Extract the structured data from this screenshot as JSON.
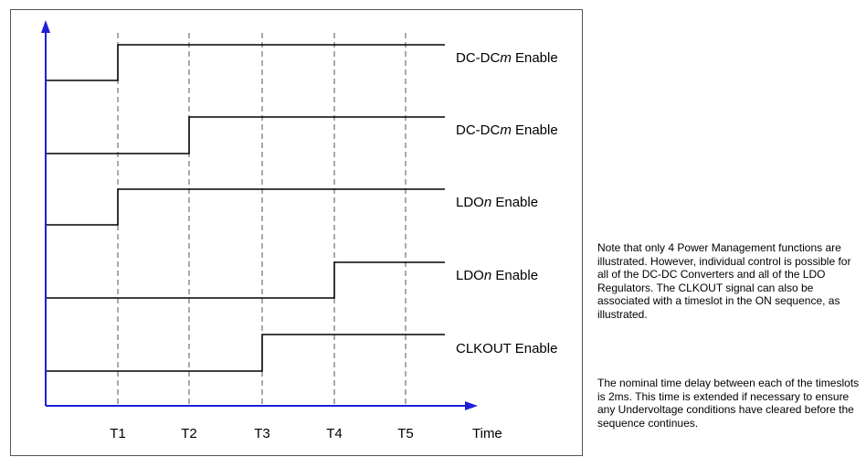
{
  "signals": [
    {
      "prefix": "DC-DC",
      "var": "m",
      "suffix": " Enable",
      "rise": "T1"
    },
    {
      "prefix": "DC-DC",
      "var": "m",
      "suffix": " Enable",
      "rise": "T2"
    },
    {
      "prefix": "LDO",
      "var": "n",
      "suffix": " Enable",
      "rise": "T1"
    },
    {
      "prefix": "LDO",
      "var": "n",
      "suffix": " Enable",
      "rise": "T4"
    },
    {
      "prefix": "CLKOUT Enable",
      "var": "",
      "suffix": "",
      "rise": "T3"
    }
  ],
  "timeslots": [
    "T1",
    "T2",
    "T3",
    "T4",
    "T5"
  ],
  "time_axis_label": "Time",
  "colors": {
    "axis": "#1f1fd6",
    "waveform": "#000000",
    "grid": "#555555",
    "frame": "#555555"
  },
  "notes": [
    "Note that only 4 Power Management functions are illustrated. However, individual control is possible for all of the DC-DC Converters and all of the LDO Regulators. The CLKOUT signal can also be associated with a timeslot in the ON sequence, as illustrated.",
    "The nominal time delay between each of the timeslots is 2ms. This time is extended if necessary to ensure any Undervoltage conditions have cleared before the sequence continues."
  ]
}
